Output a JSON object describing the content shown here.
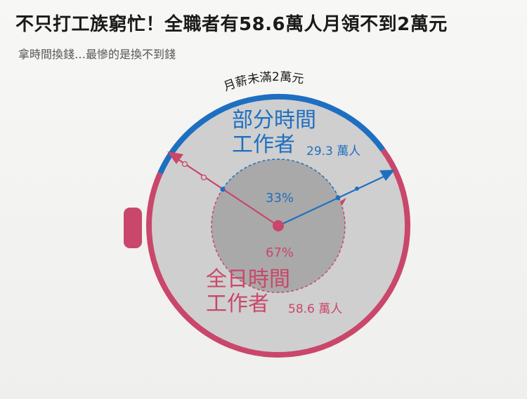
{
  "title": "不只打工族窮忙！全職者有58.6萬人月領不到2萬元",
  "subtitle": "拿時間換錢…最慘的是換不到錢",
  "chart_data": {
    "type": "pie",
    "ring_label": "月薪未滿2萬元",
    "series": [
      {
        "label_line1": "部分時間",
        "label_line2": "工作者",
        "value": 29.3,
        "count_label": "29.3 萬人",
        "percent_label": "33%",
        "color": "#1f6fc1"
      },
      {
        "label_line1": "全日時間",
        "label_line2": "工作者",
        "value": 58.6,
        "count_label": "58.6 萬人",
        "percent_label": "67%",
        "color": "#c9476a"
      }
    ],
    "unit": "萬人"
  }
}
